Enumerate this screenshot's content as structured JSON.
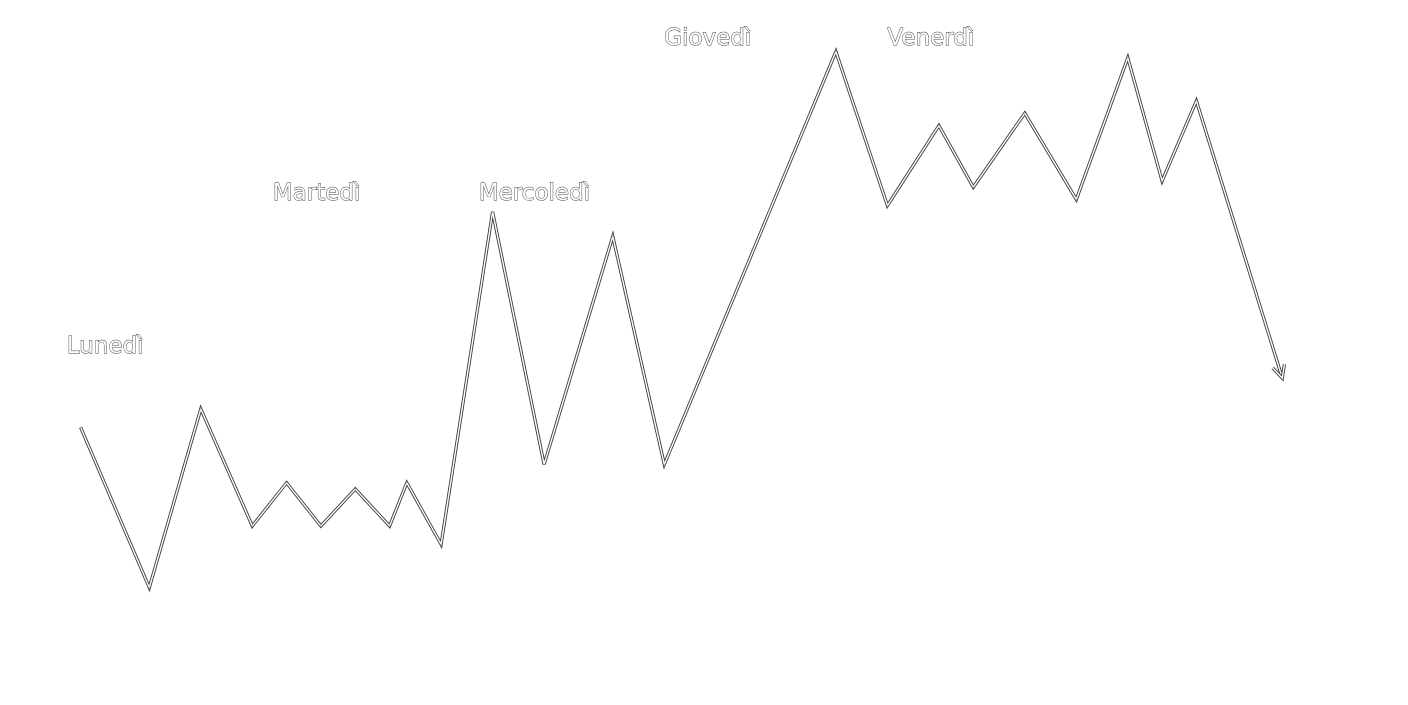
{
  "chart_data": {
    "type": "line",
    "title": "",
    "xlabel": "",
    "ylabel": "",
    "grid": false,
    "axes_visible": false,
    "colors": {
      "outline": "#3a3a3a",
      "fill": "#ffffff"
    },
    "line_style": "hollow outline with arrowhead at end",
    "ylim": [
      0,
      100
    ],
    "day_labels": [
      {
        "text": "Lunedì",
        "x": 0.2
      },
      {
        "text": "Martedì",
        "x": 6.2
      },
      {
        "text": "Mercoledì",
        "x": 12.2
      },
      {
        "text": "Giovedì",
        "x": 17.6
      },
      {
        "text": "Venerdì",
        "x": 24.1
      }
    ],
    "series": [
      {
        "x": [
          0.6,
          2.6,
          4.1,
          5.6,
          6.6,
          7.6,
          8.6,
          9.6,
          10.1,
          11.1,
          12.6,
          14.1,
          16.1,
          17.6,
          22.6,
          24.1,
          25.6,
          26.6,
          28.1,
          29.6,
          31.1,
          32.1,
          33.1,
          35.6
        ],
        "y": [
          35,
          9,
          38,
          19,
          26,
          19,
          25,
          19,
          26,
          16,
          70,
          29,
          66,
          29,
          96,
          71,
          84,
          74,
          86,
          72,
          95,
          75,
          88,
          43
        ]
      }
    ]
  }
}
